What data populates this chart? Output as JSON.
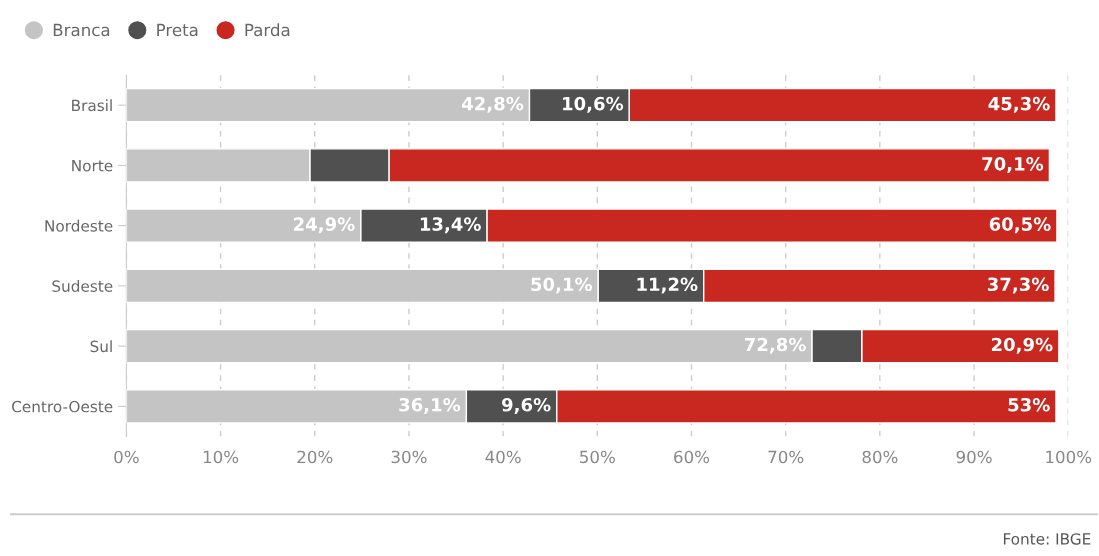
{
  "chart_data": {
    "type": "bar",
    "orientation": "horizontal",
    "stacked": true,
    "categories": [
      "Brasil",
      "Norte",
      "Nordeste",
      "Sudeste",
      "Sul",
      "Centro-Oeste"
    ],
    "series": [
      {
        "name": "Branca",
        "color": "#c4c4c4",
        "values": [
          42.8,
          19.5,
          24.9,
          50.1,
          72.8,
          36.1
        ],
        "value_labels": [
          "42,8%",
          null,
          "24,9%",
          "50,1%",
          "72,8%",
          "36,1%"
        ]
      },
      {
        "name": "Preta",
        "color": "#505050",
        "values": [
          10.6,
          8.4,
          13.4,
          11.2,
          5.3,
          9.6
        ],
        "value_labels": [
          "10,6%",
          null,
          "13,4%",
          "11,2%",
          null,
          "9,6%"
        ]
      },
      {
        "name": "Parda",
        "color": "#c8281f",
        "values": [
          45.3,
          70.1,
          60.5,
          37.3,
          20.9,
          53
        ],
        "value_labels": [
          "45,3%",
          "70,1%",
          "60,5%",
          "37,3%",
          "20,9%",
          "53%"
        ]
      }
    ],
    "xlim": [
      0,
      100
    ],
    "xticks": [
      {
        "value": 0,
        "label": "0%"
      },
      {
        "value": 10,
        "label": "10%"
      },
      {
        "value": 20,
        "label": "20%"
      },
      {
        "value": 30,
        "label": "30%"
      },
      {
        "value": 40,
        "label": "40%"
      },
      {
        "value": 50,
        "label": "50%"
      },
      {
        "value": 60,
        "label": "60%"
      },
      {
        "value": 70,
        "label": "70%"
      },
      {
        "value": 80,
        "label": "80%"
      },
      {
        "value": 90,
        "label": "90%"
      },
      {
        "value": 100,
        "label": "100%"
      }
    ],
    "grid": "x",
    "legend": "top left",
    "annotations": [
      "Fonte: IBGE"
    ]
  }
}
